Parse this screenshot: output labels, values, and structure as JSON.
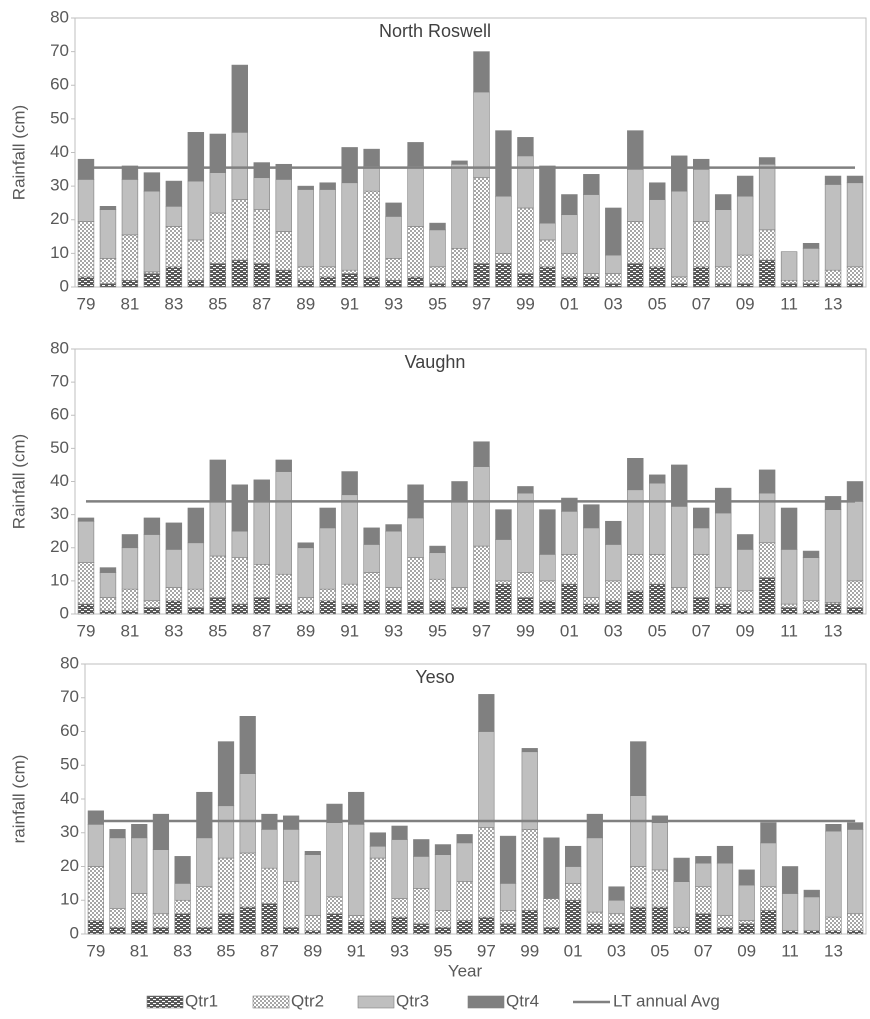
{
  "chart_data": [
    {
      "type": "bar",
      "stacked": true,
      "title": "North Roswell",
      "y_label": "Rainfall (cm)",
      "categories": [
        "79",
        null,
        "81",
        null,
        "83",
        null,
        "85",
        null,
        "87",
        null,
        "89",
        null,
        "91",
        null,
        "93",
        null,
        "95",
        null,
        "97",
        null,
        "99",
        null,
        "01",
        null,
        "03",
        null,
        "05",
        null,
        "07",
        null,
        "09",
        null,
        "11",
        null,
        "13",
        null
      ],
      "ylim": [
        0,
        80
      ],
      "yticks": [
        0,
        10,
        20,
        30,
        40,
        50,
        60,
        70,
        80
      ],
      "legend": "bottom",
      "series": [
        {
          "name": "Qtr1",
          "color": "#595959",
          "pattern": "hatch",
          "values": [
            3,
            1,
            2,
            4,
            6,
            2,
            7,
            8,
            7,
            5,
            2,
            3,
            4,
            3,
            2,
            3,
            1,
            2,
            7,
            7,
            4,
            6,
            3,
            3,
            1,
            7,
            6,
            1,
            6,
            1,
            1,
            8,
            1,
            1,
            1,
            1
          ]
        },
        {
          "name": "Qtr2",
          "color": "#a6a6a6",
          "pattern": "checker",
          "values": [
            16.5,
            7.5,
            13.5,
            0.5,
            12,
            12,
            15,
            18,
            16,
            11.5,
            4,
            3,
            1,
            25.5,
            6.5,
            15,
            5,
            9.5,
            25.5,
            3,
            19.5,
            8,
            7,
            1,
            3,
            12.5,
            5.5,
            2,
            13.5,
            5,
            8.5,
            9,
            1,
            1,
            4,
            5
          ]
        },
        {
          "name": "Qtr3",
          "color": "#bfbfbf",
          "values": [
            12.5,
            14.5,
            16.5,
            24,
            6,
            17.5,
            12,
            20,
            9.5,
            15.5,
            23,
            23,
            26,
            7.5,
            12.5,
            18,
            11,
            25,
            25.5,
            17,
            15.5,
            5,
            11.5,
            23.5,
            5.5,
            15.5,
            14.5,
            25.5,
            15.5,
            17,
            17.5,
            19.5,
            8.5,
            9.5,
            25.5,
            25
          ]
        },
        {
          "name": "Qtr4",
          "color": "#808080",
          "values": [
            6,
            1,
            4,
            5.5,
            7.5,
            14.5,
            11.5,
            20,
            4.5,
            4.5,
            1,
            2,
            10.5,
            5,
            4,
            7,
            2,
            1,
            12,
            19.5,
            5.5,
            17,
            6,
            6,
            14,
            11.5,
            5,
            10.5,
            3,
            4.5,
            6,
            2,
            0,
            1.5,
            2.5,
            2
          ]
        }
      ],
      "reference_line": {
        "name": "LT annual Avg",
        "value": 35.5,
        "color": "#808080"
      }
    },
    {
      "type": "bar",
      "stacked": true,
      "title": "Vaughn",
      "y_label": "Rainfall (cm)",
      "categories": [
        "79",
        null,
        "81",
        null,
        "83",
        null,
        "85",
        null,
        "87",
        null,
        "89",
        null,
        "91",
        null,
        "93",
        null,
        "95",
        null,
        "97",
        null,
        "99",
        null,
        "01",
        null,
        "03",
        null,
        "05",
        null,
        "07",
        null,
        "09",
        null,
        "11",
        null,
        "13",
        null
      ],
      "ylim": [
        0,
        80
      ],
      "yticks": [
        0,
        10,
        20,
        30,
        40,
        50,
        60,
        70,
        80
      ],
      "series": [
        {
          "color": "#595959",
          "pattern": "hatch",
          "values": [
            3,
            1,
            1,
            2,
            4,
            2,
            5,
            3,
            5,
            3,
            1,
            4,
            3,
            4,
            4,
            4,
            4,
            2,
            4,
            9,
            5,
            4,
            9,
            3,
            4,
            7,
            9,
            1,
            5,
            3,
            1,
            11,
            2,
            1,
            3,
            2
          ]
        },
        {
          "color": "#a6a6a6",
          "pattern": "checker",
          "values": [
            12.5,
            4,
            6.5,
            2,
            4,
            5.5,
            12.5,
            14,
            10,
            9,
            4,
            3.5,
            6,
            8.5,
            4,
            13,
            6.5,
            6,
            16.5,
            1,
            7.5,
            6,
            9,
            2,
            6,
            11,
            9,
            7,
            13,
            5,
            6,
            10.5,
            1,
            3,
            0.5,
            8
          ]
        },
        {
          "color": "#bfbfbf",
          "values": [
            12.5,
            7.5,
            12.5,
            20,
            11.5,
            14,
            16.5,
            8,
            19,
            31,
            15,
            18.5,
            27,
            8.5,
            17,
            12,
            8,
            26,
            24,
            12.5,
            24,
            8,
            13,
            21,
            11,
            19.5,
            21.5,
            24.5,
            8,
            22.5,
            12.5,
            15,
            16.5,
            13,
            28,
            24
          ]
        },
        {
          "color": "#808080",
          "values": [
            1,
            1.5,
            4,
            5,
            8,
            10.5,
            12.5,
            14,
            6.5,
            3.5,
            1.5,
            6,
            7,
            5,
            2,
            10,
            2,
            6,
            7.5,
            9,
            2,
            13.5,
            4,
            7,
            7,
            9.5,
            2.5,
            12.5,
            6,
            7.5,
            4.5,
            7,
            12.5,
            2,
            4,
            6
          ]
        }
      ],
      "reference_line": {
        "value": 34,
        "color": "#808080"
      }
    },
    {
      "type": "bar",
      "stacked": true,
      "title": "Yeso",
      "y_label": "rainfall (cm)",
      "x_label": "Year",
      "categories": [
        "79",
        null,
        "81",
        null,
        "83",
        null,
        "85",
        null,
        "87",
        null,
        "89",
        null,
        "91",
        null,
        "93",
        null,
        "95",
        null,
        "97",
        null,
        "99",
        null,
        "01",
        null,
        "03",
        null,
        "05",
        null,
        "07",
        null,
        "09",
        null,
        "11",
        null,
        "13",
        null
      ],
      "ylim": [
        0,
        80
      ],
      "yticks": [
        0,
        10,
        20,
        30,
        40,
        50,
        60,
        70,
        80
      ],
      "series": [
        {
          "color": "#595959",
          "pattern": "hatch",
          "values": [
            4,
            2,
            4,
            2,
            6,
            2,
            6,
            8,
            9,
            2,
            1,
            6,
            4,
            4,
            5,
            3,
            2,
            4,
            5,
            3,
            7,
            2,
            10,
            3,
            3,
            8,
            8,
            1,
            6,
            2,
            3,
            7,
            1,
            1,
            1,
            1
          ]
        },
        {
          "color": "#a6a6a6",
          "pattern": "checker",
          "values": [
            16,
            5.5,
            8,
            4,
            4,
            12,
            16.5,
            16,
            10.5,
            13.5,
            4.5,
            5,
            1.5,
            18.5,
            5.5,
            10.5,
            5,
            11.5,
            26.5,
            4,
            24,
            8.5,
            5,
            3.5,
            3,
            12,
            11,
            1,
            8,
            3.5,
            1,
            7,
            0,
            0,
            4,
            5
          ]
        },
        {
          "color": "#bfbfbf",
          "values": [
            12.5,
            21,
            16.5,
            19,
            5,
            14.5,
            15.5,
            23.5,
            11.5,
            15.5,
            18,
            22,
            27,
            3.5,
            17.5,
            9.5,
            16.5,
            11.5,
            28.5,
            8,
            23,
            0,
            5,
            22,
            4,
            21,
            14,
            13.5,
            7,
            15.5,
            10.5,
            13,
            11,
            10,
            25.5,
            25
          ]
        },
        {
          "color": "#808080",
          "values": [
            4,
            2.5,
            4,
            10.5,
            8,
            13.5,
            19,
            17,
            4.5,
            4,
            1,
            5.5,
            9.5,
            4,
            4,
            5,
            3,
            2.5,
            11,
            14,
            1,
            18,
            6,
            7,
            4,
            16,
            2,
            7,
            2,
            5,
            4.5,
            6,
            8,
            2,
            2,
            2
          ]
        }
      ],
      "reference_line": {
        "value": 33.5,
        "color": "#808080"
      }
    }
  ]
}
